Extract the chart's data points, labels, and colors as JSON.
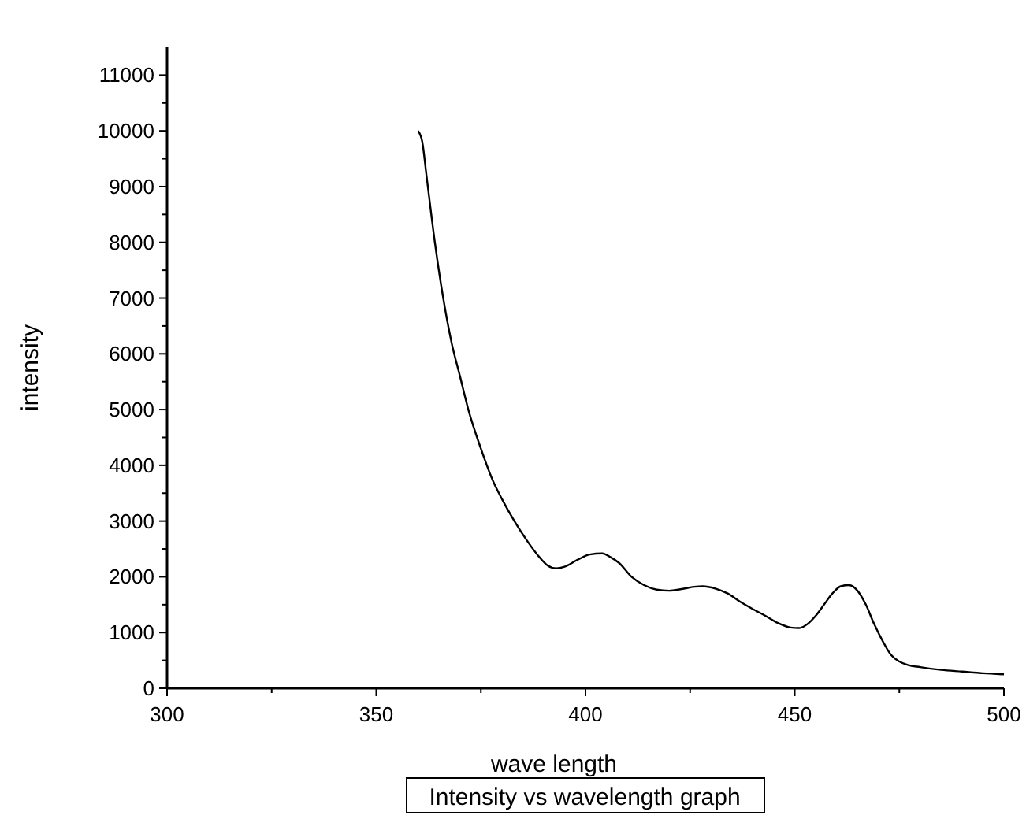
{
  "chart_data": {
    "type": "line",
    "title": "Intensity vs wavelength graph",
    "xlabel": "wave length",
    "ylabel": "intensity",
    "xlim": [
      300,
      500
    ],
    "xticks": [
      300,
      {
        "value": 325,
        "label": null
      },
      350,
      {
        "value": 375,
        "label": null
      },
      400,
      {
        "value": 425,
        "label": null
      },
      450,
      {
        "value": 475,
        "label": null
      },
      500
    ],
    "ylim": [
      0,
      11500
    ],
    "yticks": [
      0,
      {
        "value": 500,
        "label": null
      },
      1000,
      {
        "value": 1500,
        "label": null
      },
      2000,
      {
        "value": 2500,
        "label": null
      },
      3000,
      {
        "value": 3500,
        "label": null
      },
      4000,
      {
        "value": 4500,
        "label": null
      },
      5000,
      {
        "value": 5500,
        "label": null
      },
      6000,
      {
        "value": 6500,
        "label": null
      },
      7000,
      {
        "value": 7500,
        "label": null
      },
      8000,
      {
        "value": 8500,
        "label": null
      },
      9000,
      {
        "value": 9500,
        "label": null
      },
      10000,
      {
        "value": 10500,
        "label": null
      },
      11000
    ],
    "grid": false,
    "series": [
      {
        "color": "#000000",
        "x": [
          360,
          361,
          362,
          364,
          366,
          368,
          370,
          372,
          375,
          378,
          380,
          383,
          386,
          389,
          391,
          393,
          395,
          398,
          401,
          404,
          406,
          408,
          411,
          414,
          417,
          420,
          423,
          426,
          428,
          431,
          434,
          437,
          440,
          443,
          446,
          449,
          451,
          453,
          455,
          457,
          459,
          461,
          463,
          465,
          467,
          469,
          471,
          473,
          475,
          477,
          480,
          485,
          490,
          495,
          500
        ],
        "values": [
          10000,
          9800,
          9200,
          8000,
          7000,
          6200,
          5600,
          5000,
          4300,
          3700,
          3400,
          3000,
          2650,
          2350,
          2200,
          2150,
          2180,
          2300,
          2400,
          2420,
          2350,
          2250,
          2000,
          1850,
          1770,
          1750,
          1780,
          1820,
          1830,
          1790,
          1700,
          1550,
          1420,
          1300,
          1170,
          1090,
          1080,
          1150,
          1300,
          1500,
          1700,
          1830,
          1850,
          1750,
          1500,
          1150,
          850,
          600,
          480,
          420,
          380,
          330,
          300,
          270,
          250
        ]
      }
    ]
  }
}
